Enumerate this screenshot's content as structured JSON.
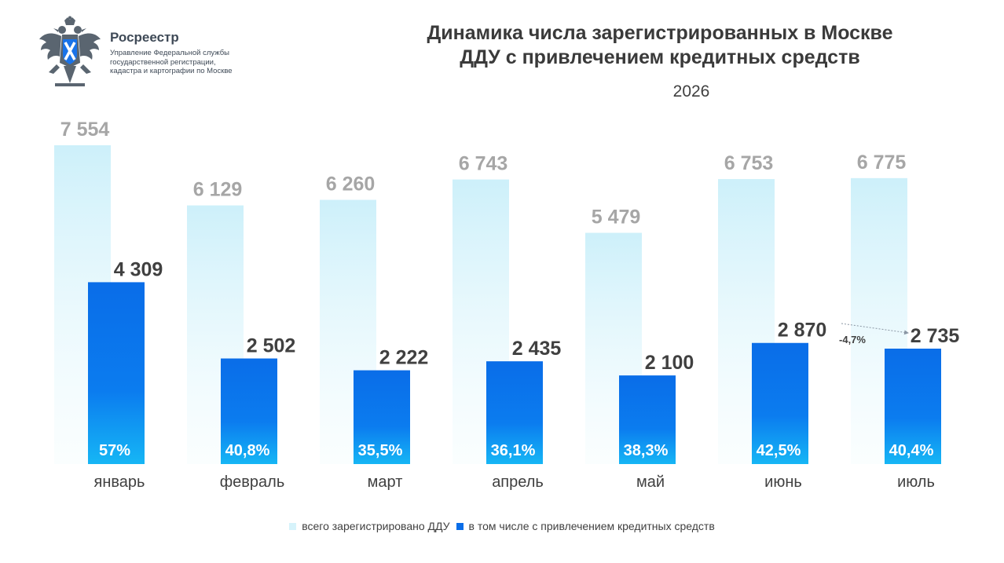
{
  "header": {
    "org_name": "Росреестр",
    "org_subtitle_lines": [
      "Управление Федеральной службы",
      "государственной регистрации,",
      "кадастра и картографии по Москве"
    ]
  },
  "chart_data": {
    "type": "bar",
    "title_lines": [
      "Динамика числа зарегистрированных в Москве",
      "ДДУ с привлечением кредитных средств"
    ],
    "subtitle": "2026",
    "categories": [
      "январь",
      "февраль",
      "март",
      "апрель",
      "май",
      "июнь",
      "июль"
    ],
    "series": [
      {
        "name": "всего зарегистрировано ДДУ",
        "values": [
          7554,
          6129,
          6260,
          6743,
          5479,
          6753,
          6775
        ],
        "labels": [
          "7 554",
          "6 129",
          "6 260",
          "6 743",
          "5 479",
          "6 753",
          "6 775"
        ],
        "color": "#d6f3fb"
      },
      {
        "name": "в том числе с привлечением кредитных средств",
        "values": [
          4309,
          2502,
          2222,
          2435,
          2100,
          2870,
          2735
        ],
        "labels": [
          "4 309",
          "2 502",
          "2 222",
          "2 435",
          "2 100",
          "2 870",
          "2 735"
        ],
        "color": "#0a6de8"
      }
    ],
    "share_labels": [
      "57%",
      "40,8%",
      "35,5%",
      "36,1%",
      "38,3%",
      "42,5%",
      "40,4%"
    ],
    "annotation": {
      "text": "-4,7%",
      "from_category": "июнь",
      "to_category": "июль"
    },
    "legend_position": "bottom",
    "ylim": [
      0,
      8000
    ],
    "grid": false,
    "colors": {
      "total_label": "#a6a6a6",
      "credit_label": "#404040",
      "share_label": "#ffffff",
      "category_label": "#404040"
    }
  }
}
